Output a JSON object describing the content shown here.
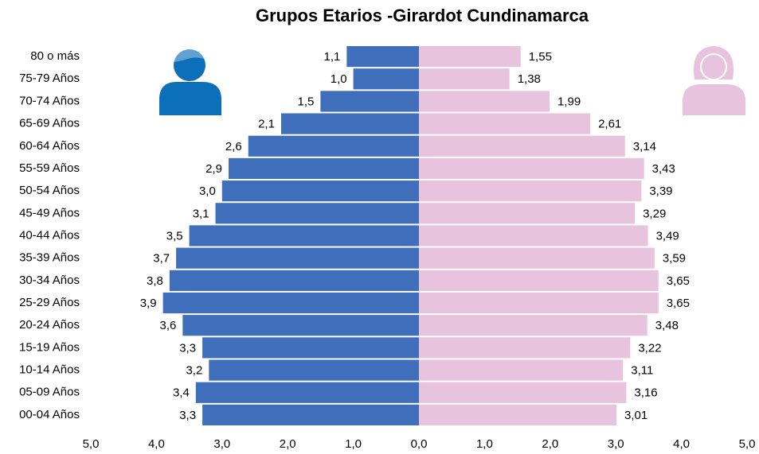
{
  "chart_data": {
    "type": "pyramid",
    "title": "Grupos Etarios -Girardot Cundinamarca",
    "categories": [
      "80 o más",
      "75-79 Años",
      "70-74 Años",
      "65-69 Años",
      "60-64 Años",
      "55-59 Años",
      "50-54 Años",
      "45-49 Años",
      "40-44 Años",
      "35-39 Años",
      "30-34 Años",
      "25-29 Años",
      "20-24 Años",
      "15-19 Años",
      "10-14 Años",
      "05-09 Años",
      "00-04 Años"
    ],
    "series": [
      {
        "color": "#3f6fba",
        "side": "left",
        "values": [
          1.1,
          1.0,
          1.5,
          2.1,
          2.6,
          2.9,
          3.0,
          3.1,
          3.5,
          3.7,
          3.8,
          3.9,
          3.6,
          3.3,
          3.2,
          3.4,
          3.3
        ],
        "value_labels": [
          "1,1",
          "1,0",
          "1,5",
          "2,1",
          "2,6",
          "2,9",
          "3,0",
          "3,1",
          "3,5",
          "3,7",
          "3,8",
          "3,9",
          "3,6",
          "3,3",
          "3,2",
          "3,4",
          "3,3"
        ]
      },
      {
        "color": "#e8c3de",
        "side": "right",
        "values": [
          1.55,
          1.38,
          1.99,
          2.61,
          3.14,
          3.43,
          3.39,
          3.29,
          3.49,
          3.59,
          3.65,
          3.65,
          3.48,
          3.22,
          3.11,
          3.16,
          3.01
        ],
        "value_labels": [
          "1,55",
          "1,38",
          "1,99",
          "2,61",
          "3,14",
          "3,43",
          "3,39",
          "3,29",
          "3,49",
          "3,59",
          "3,65",
          "3,65",
          "3,48",
          "3,22",
          "3,11",
          "3,16",
          "3,01"
        ]
      }
    ],
    "xlim": [
      -5,
      5
    ],
    "xticks": [
      {
        "value": -5,
        "label": "5,0"
      },
      {
        "value": -4,
        "label": "4,0"
      },
      {
        "value": -3,
        "label": "3,0"
      },
      {
        "value": -2,
        "label": "2,0"
      },
      {
        "value": -1,
        "label": "1,0"
      },
      {
        "value": 0,
        "label": "0,0"
      },
      {
        "value": 1,
        "label": "1,0"
      },
      {
        "value": 2,
        "label": "2,0"
      },
      {
        "value": 3,
        "label": "3,0"
      },
      {
        "value": 4,
        "label": "4,0"
      },
      {
        "value": 5,
        "label": "5,0"
      }
    ]
  }
}
